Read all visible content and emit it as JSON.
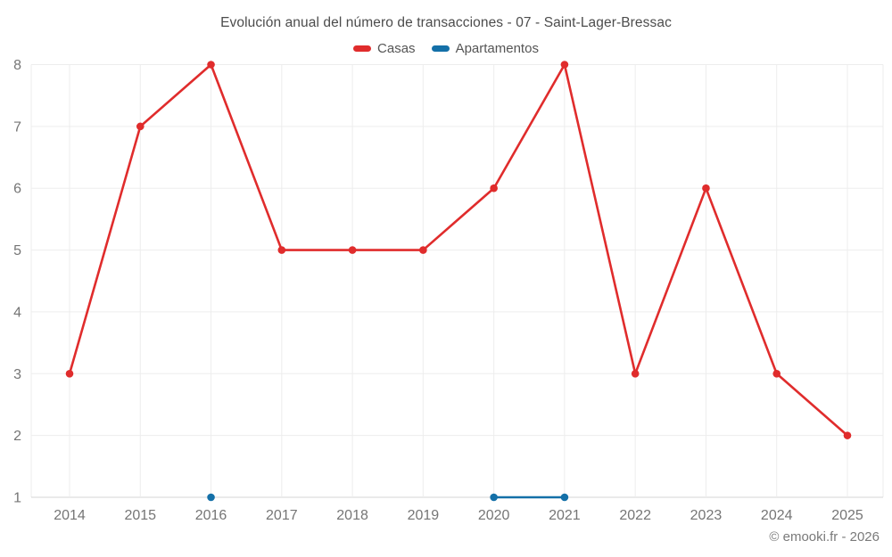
{
  "chart_data": {
    "type": "line",
    "title": "Evolución anual del número de transacciones - 07 - Saint-Lager-Bressac",
    "x": [
      "2014",
      "2015",
      "2016",
      "2017",
      "2018",
      "2019",
      "2020",
      "2021",
      "2022",
      "2023",
      "2024",
      "2025"
    ],
    "xlabel": "",
    "ylabel": "",
    "ylim": [
      1,
      8
    ],
    "yticks": [
      1,
      2,
      3,
      4,
      5,
      6,
      7,
      8
    ],
    "grid": true,
    "legend_position": "top",
    "series": [
      {
        "name": "Casas",
        "color": "#e02c2c",
        "values": [
          3,
          7,
          8,
          5,
          5,
          5,
          6,
          8,
          3,
          6,
          3,
          2
        ]
      },
      {
        "name": "Apartamentos",
        "color": "#1470a8",
        "values": [
          null,
          null,
          1,
          null,
          null,
          null,
          1,
          1,
          null,
          null,
          null,
          null
        ]
      }
    ]
  },
  "colors": {
    "grid": "#ededed",
    "axis_line": "#d4d4d4",
    "tick_label": "#757575"
  },
  "footer": {
    "copyright": "© emooki.fr - 2026"
  }
}
